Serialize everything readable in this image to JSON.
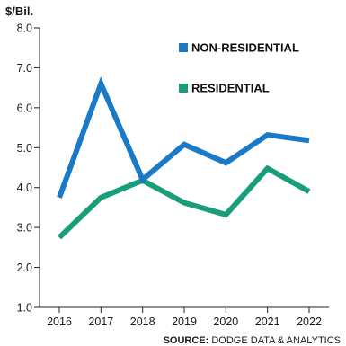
{
  "chart_data": {
    "type": "line",
    "categories": [
      "2016",
      "2017",
      "2018",
      "2019",
      "2020",
      "2021",
      "2022"
    ],
    "series": [
      {
        "name": "NON-RESIDENTIAL",
        "values": [
          3.75,
          6.6,
          4.2,
          5.08,
          4.62,
          5.32,
          5.18
        ],
        "color": "#1a7ac7"
      },
      {
        "name": "RESIDENTIAL",
        "values": [
          2.75,
          3.75,
          4.18,
          3.62,
          3.32,
          4.48,
          3.9
        ],
        "color": "#199e7b"
      }
    ],
    "ylabel": "$/Bil.",
    "ylim": [
      1.0,
      8.0
    ],
    "yticks": [
      "1.0",
      "2.0",
      "3.0",
      "4.0",
      "5.0",
      "6.0",
      "7.0",
      "8.0"
    ],
    "grid": false,
    "legend": "top-right"
  },
  "source": {
    "prefix": "SOURCE:",
    "text": " DODGE DATA & ANALYTICS"
  }
}
